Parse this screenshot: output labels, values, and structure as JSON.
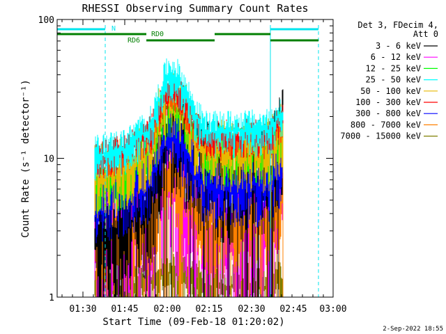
{
  "chart_data": {
    "type": "line",
    "title": "RHESSI Observing Summary Count Rates",
    "xlabel": "Start Time (09-Feb-18 01:20:02)",
    "ylabel": "Count Rate (s⁻¹ detector⁻¹)",
    "y_scale": "log",
    "ylim": [
      1,
      100
    ],
    "x_ticks": [
      "01:30",
      "01:45",
      "02:00",
      "02:15",
      "02:30",
      "02:45",
      "03:00"
    ],
    "y_ticks": [
      "1",
      "10",
      "100"
    ],
    "legend_header": [
      "Det 3, FDecim 4,",
      "Att 0"
    ],
    "legend_position": "right",
    "timestamp": "2-Sep-2022 18:55",
    "flags": [
      {
        "label": "N",
        "color": "#00e5ee"
      },
      {
        "label": "RD0",
        "color": "#007f00"
      },
      {
        "label": "RD6",
        "color": "#007f00"
      }
    ],
    "series": [
      {
        "name": "3 - 6 keV",
        "color": "#000000",
        "shape": [
          2.5,
          3.2,
          4.3,
          17,
          7.5,
          7.9,
          13
        ]
      },
      {
        "name": "6 - 12 keV",
        "color": "#ff00ff",
        "shape": [
          2.4,
          2.9,
          3.5,
          5.5,
          3.2,
          3.0,
          6.5
        ]
      },
      {
        "name": "12 - 25 keV",
        "color": "#00ff00",
        "shape": [
          7.0,
          7.5,
          10.5,
          25,
          11,
          11.5,
          15
        ]
      },
      {
        "name": "25 - 50 keV",
        "color": "#00ffff",
        "shape": [
          10.5,
          11.5,
          15,
          40,
          15.5,
          16,
          21
        ]
      },
      {
        "name": "50 - 100 keV",
        "color": "#e8b800",
        "shape": [
          7.5,
          8.0,
          11,
          28,
          11,
          11.5,
          15
        ]
      },
      {
        "name": "100 - 300 keV",
        "color": "#ff0000",
        "shape": [
          10,
          11,
          14,
          31,
          14,
          14.5,
          18
        ]
      },
      {
        "name": "300 - 800 keV",
        "color": "#0000ff",
        "shape": [
          4.8,
          5.2,
          6.5,
          15,
          6.2,
          6.5,
          9
        ]
      },
      {
        "name": "800 - 7000 keV",
        "color": "#ff8000",
        "shape": [
          2.6,
          2.9,
          3.6,
          8.5,
          3.5,
          3.7,
          5.5
        ]
      },
      {
        "name": "7000 - 15000 keV",
        "color": "#7f7f00",
        "shape": [
          1.2,
          1.2,
          1.3,
          1.5,
          1.2,
          1.2,
          1.3
        ]
      }
    ]
  }
}
